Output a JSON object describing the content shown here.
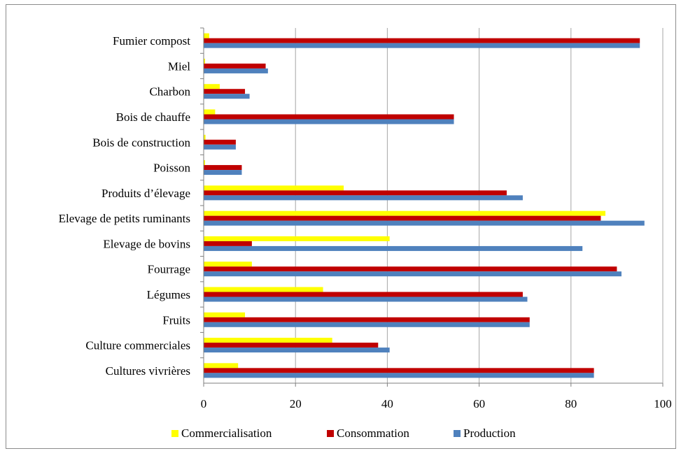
{
  "chart_data": {
    "type": "bar",
    "orientation": "horizontal",
    "categories": [
      "Fumier compost",
      "Miel",
      "Charbon",
      "Bois de chauffe",
      "Bois de construction",
      "Poisson",
      "Produits d’élevage",
      "Elevage de petits ruminants",
      "Elevage de bovins",
      "Fourrage",
      "Légumes",
      "Fruits",
      "Culture commerciales",
      "Cultures vivrières"
    ],
    "series": [
      {
        "name": "Commercialisation",
        "color": "#ffff00",
        "values": [
          1.2,
          0.3,
          3.5,
          2.5,
          0.4,
          0.3,
          30.5,
          87.5,
          40.5,
          10.5,
          26,
          9,
          28,
          7.5
        ]
      },
      {
        "name": "Consommation",
        "color": "#c00000",
        "values": [
          95,
          13.5,
          9,
          54.5,
          7,
          8.3,
          66,
          86.5,
          10.5,
          90,
          69.5,
          71,
          38,
          85
        ]
      },
      {
        "name": "Production",
        "color": "#4f81bd",
        "values": [
          95,
          14,
          10,
          54.5,
          7,
          8.3,
          69.5,
          96,
          82.5,
          91,
          70.5,
          71,
          40.5,
          85
        ]
      }
    ],
    "xlim": [
      0,
      100
    ],
    "xticks": [
      "0",
      "20",
      "40",
      "60",
      "80",
      "100"
    ],
    "grid": "vertical",
    "legend_position": "bottom",
    "title": "",
    "xlabel": "",
    "ylabel": ""
  }
}
